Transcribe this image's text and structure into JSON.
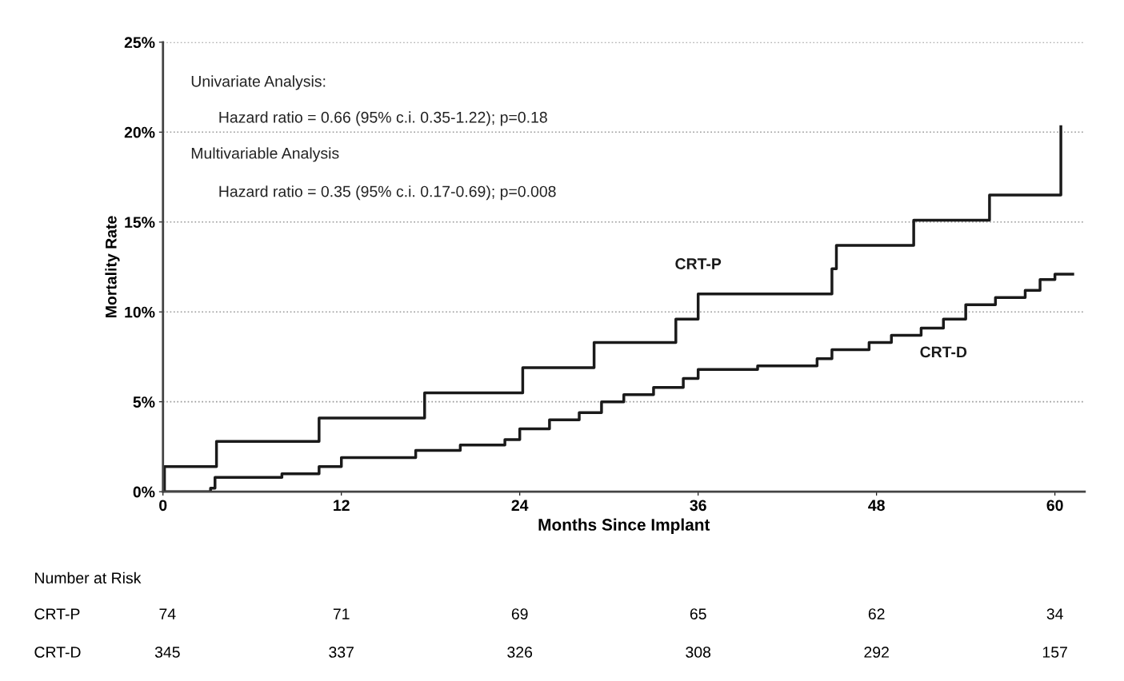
{
  "chart_data": {
    "type": "step",
    "xlabel": "Months Since Implant",
    "ylabel": "Mortality Rate",
    "xlim": [
      0,
      62
    ],
    "xticks": [
      0,
      12,
      24,
      36,
      48,
      60
    ],
    "ylim": [
      0,
      25
    ],
    "yticks": [
      {
        "value": 0,
        "label": "0%"
      },
      {
        "value": 5,
        "label": "5%"
      },
      {
        "value": 10,
        "label": "10%"
      },
      {
        "value": 15,
        "label": "15%"
      },
      {
        "value": 20,
        "label": "20%"
      },
      {
        "value": 25,
        "label": "25%"
      }
    ],
    "grid": "y",
    "legend": false,
    "line_style": "solid",
    "marker": "none",
    "series": [
      {
        "name": "CRT-P",
        "color": "#1a1a1a",
        "x": [
          0,
          0.1,
          3.6,
          10.5,
          17.6,
          24.2,
          29,
          34.5,
          36,
          45,
          45.3,
          50.5,
          55.6,
          60.4,
          60.4
        ],
        "values": [
          0,
          1.4,
          2.8,
          4.1,
          5.5,
          6.9,
          8.3,
          9.6,
          11.0,
          12.4,
          13.7,
          15.1,
          16.5,
          16.5,
          20.3
        ]
      },
      {
        "name": "CRT-D",
        "color": "#1a1a1a",
        "x": [
          0,
          3.2,
          3.5,
          8,
          10.5,
          12,
          17,
          20,
          23,
          24,
          26,
          28,
          29.5,
          31,
          33,
          35,
          36,
          40,
          44,
          45,
          47.5,
          49,
          51,
          52.5,
          54,
          56,
          58,
          59,
          60,
          61.2
        ],
        "values": [
          0,
          0.2,
          0.8,
          1.0,
          1.4,
          1.9,
          2.3,
          2.6,
          2.9,
          3.5,
          4.0,
          4.4,
          5.0,
          5.4,
          5.8,
          6.3,
          6.8,
          7.0,
          7.4,
          7.9,
          8.3,
          8.7,
          9.1,
          9.6,
          10.4,
          10.8,
          11.2,
          11.8,
          12.1,
          12.1
        ]
      }
    ],
    "annotations": [
      "Univariate Analysis:",
      "Hazard ratio = 0.66 (95% c.i. 0.35-1.22); p=0.18",
      "Multivariable Analysis",
      "Hazard ratio = 0.35 (95% c.i. 0.17-0.69); p=0.008",
      "Number at Risk",
      "CRT-P",
      "74",
      "71",
      "69",
      "65",
      "62",
      "34",
      "CRT-D",
      "345",
      "337",
      "326",
      "308",
      "292",
      "157"
    ]
  }
}
